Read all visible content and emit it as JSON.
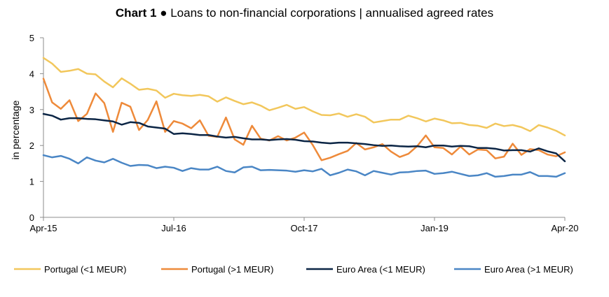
{
  "chart_data": {
    "type": "line",
    "title_bold": "Chart 1",
    "title_rest": " ● Loans to non-financial corporations | annualised agreed rates",
    "ylabel": "in percentage",
    "xlabel": "",
    "ylim": [
      0,
      5
    ],
    "yticks": [
      "0",
      "1",
      "2",
      "3",
      "4",
      "5"
    ],
    "xticks": [
      {
        "label": "Apr-15",
        "index": 0
      },
      {
        "label": "Jul-16",
        "index": 15
      },
      {
        "label": "Oct-17",
        "index": 30
      },
      {
        "label": "Jan-19",
        "index": 45
      },
      {
        "label": "Apr-20",
        "index": 60
      }
    ],
    "x_start": "2015-04",
    "x_end": "2020-04",
    "grid": false,
    "legend_position": "bottom",
    "series": [
      {
        "name": "Portugal (<1 MEUR)",
        "color": "#F2C75C",
        "values": [
          4.44,
          4.28,
          4.05,
          4.08,
          4.13,
          4.0,
          3.98,
          3.78,
          3.62,
          3.87,
          3.72,
          3.55,
          3.58,
          3.53,
          3.33,
          3.44,
          3.4,
          3.38,
          3.41,
          3.37,
          3.22,
          3.34,
          3.24,
          3.15,
          3.2,
          3.11,
          2.98,
          3.05,
          3.13,
          3.02,
          3.07,
          2.95,
          2.85,
          2.84,
          2.89,
          2.8,
          2.87,
          2.8,
          2.64,
          2.68,
          2.72,
          2.72,
          2.83,
          2.76,
          2.67,
          2.75,
          2.7,
          2.62,
          2.63,
          2.57,
          2.55,
          2.49,
          2.61,
          2.54,
          2.57,
          2.51,
          2.4,
          2.57,
          2.5,
          2.41,
          2.28
        ]
      },
      {
        "name": "Portugal (>1 MEUR)",
        "color": "#EE8A3A",
        "values": [
          3.86,
          3.2,
          3.02,
          3.26,
          2.68,
          2.88,
          3.45,
          3.18,
          2.38,
          3.19,
          3.08,
          2.43,
          2.71,
          3.23,
          2.38,
          2.68,
          2.61,
          2.48,
          2.7,
          2.27,
          2.24,
          2.78,
          2.17,
          2.02,
          2.55,
          2.19,
          2.14,
          2.26,
          2.14,
          2.22,
          2.36,
          2.01,
          1.59,
          1.66,
          1.76,
          1.85,
          2.07,
          1.89,
          1.95,
          2.04,
          1.83,
          1.68,
          1.77,
          1.98,
          2.28,
          1.95,
          1.93,
          1.75,
          1.97,
          1.75,
          1.89,
          1.87,
          1.64,
          1.69,
          2.05,
          1.74,
          1.9,
          1.87,
          1.75,
          1.7,
          1.81
        ]
      },
      {
        "name": "Euro Area (<1 MEUR)",
        "color": "#0B2545",
        "values": [
          2.88,
          2.83,
          2.72,
          2.76,
          2.76,
          2.74,
          2.73,
          2.7,
          2.67,
          2.58,
          2.65,
          2.63,
          2.53,
          2.5,
          2.47,
          2.32,
          2.34,
          2.32,
          2.29,
          2.29,
          2.25,
          2.22,
          2.24,
          2.2,
          2.17,
          2.17,
          2.15,
          2.17,
          2.18,
          2.16,
          2.12,
          2.11,
          2.08,
          2.06,
          2.08,
          2.08,
          2.06,
          2.04,
          2.01,
          1.99,
          2.0,
          1.98,
          1.97,
          1.98,
          1.95,
          2.0,
          2.0,
          1.97,
          1.99,
          1.98,
          1.93,
          1.93,
          1.91,
          1.86,
          1.87,
          1.87,
          1.83,
          1.92,
          1.84,
          1.78,
          1.56
        ]
      },
      {
        "name": "Euro Area (>1 MEUR)",
        "color": "#4A86C5",
        "values": [
          1.73,
          1.67,
          1.71,
          1.63,
          1.5,
          1.67,
          1.58,
          1.53,
          1.63,
          1.52,
          1.43,
          1.46,
          1.45,
          1.37,
          1.41,
          1.38,
          1.29,
          1.37,
          1.33,
          1.33,
          1.41,
          1.29,
          1.25,
          1.39,
          1.41,
          1.31,
          1.32,
          1.31,
          1.3,
          1.27,
          1.31,
          1.28,
          1.35,
          1.17,
          1.24,
          1.33,
          1.28,
          1.17,
          1.29,
          1.24,
          1.19,
          1.25,
          1.26,
          1.29,
          1.3,
          1.21,
          1.23,
          1.27,
          1.21,
          1.15,
          1.17,
          1.23,
          1.13,
          1.15,
          1.19,
          1.19,
          1.26,
          1.15,
          1.15,
          1.13,
          1.23
        ]
      }
    ]
  }
}
